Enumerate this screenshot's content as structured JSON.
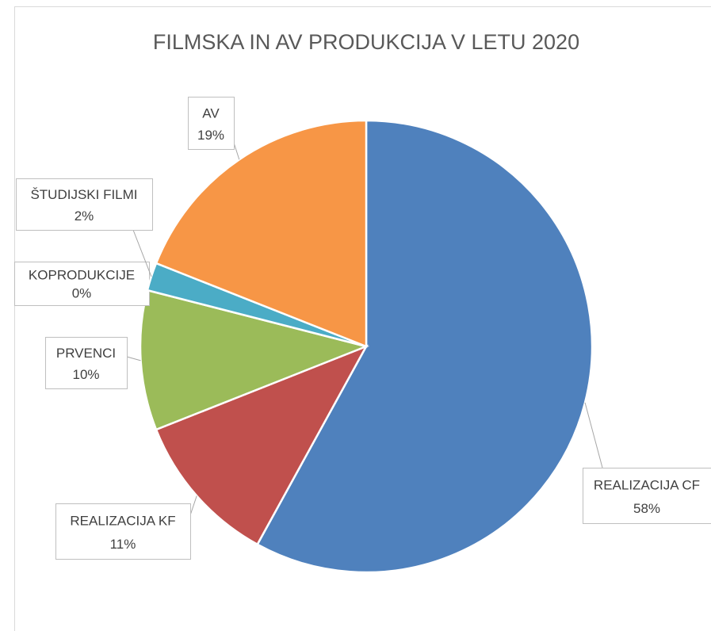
{
  "chart_data": {
    "type": "pie",
    "title": "FILMSKA IN AV PRODUKCIJA V LETU 2020",
    "categories": [
      "REALIZACIJA CF",
      "REALIZACIJA KF",
      "PRVENCI",
      "KOPRODUKCIJE",
      "ŠTUDIJSKI FILMI",
      "AV"
    ],
    "values": [
      58,
      11,
      10,
      0,
      2,
      19
    ],
    "value_labels": [
      "58%",
      "11%",
      "10%",
      "0%",
      "2%",
      "19%"
    ],
    "colors": [
      "#4f81bd",
      "#c0504d",
      "#9bbb59",
      "#8064a2",
      "#4bacc6",
      "#f79646"
    ]
  }
}
